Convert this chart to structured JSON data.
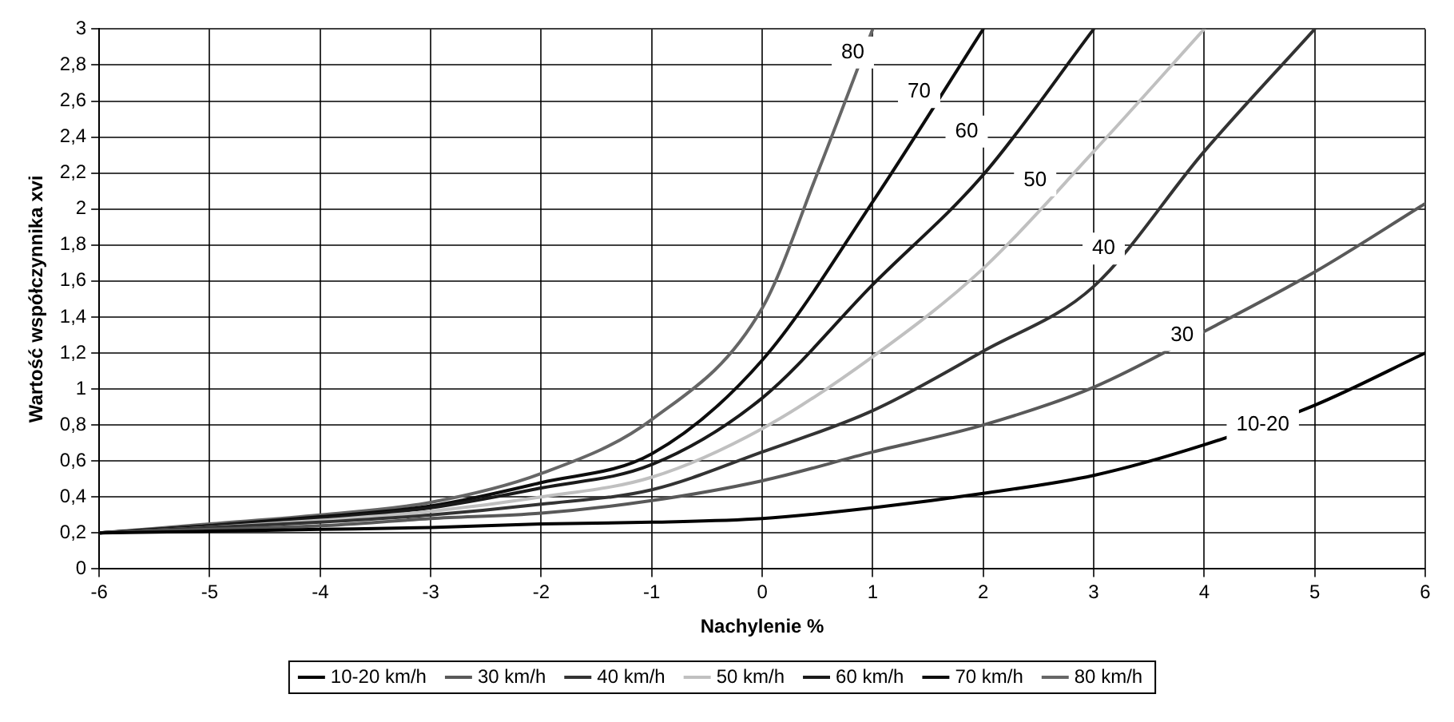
{
  "chart_data": {
    "type": "line",
    "xlabel": "Nachylenie %",
    "ylabel": "Wartość współczynnika xvi",
    "xlim": [
      -6,
      6
    ],
    "xticks": [
      -6,
      -5,
      -4,
      -3,
      -2,
      -1,
      0,
      1,
      2,
      3,
      4,
      5,
      6
    ],
    "ylim": [
      0,
      3
    ],
    "yticks": [
      0,
      {
        "value": 0.2,
        "label": "0,2"
      },
      {
        "value": 0.4,
        "label": "0,4"
      },
      {
        "value": 0.6,
        "label": "0,6"
      },
      {
        "value": 0.8,
        "label": "0,8"
      },
      1,
      {
        "value": 1.2,
        "label": "1,2"
      },
      {
        "value": 1.4,
        "label": "1,4"
      },
      {
        "value": 1.6,
        "label": "1,6"
      },
      {
        "value": 1.8,
        "label": "1,8"
      },
      2,
      {
        "value": 2.2,
        "label": "2,2"
      },
      {
        "value": 2.4,
        "label": "2,4"
      },
      {
        "value": 2.6,
        "label": "2,6"
      },
      {
        "value": 2.8,
        "label": "2,8"
      },
      3
    ],
    "grid": true,
    "legend": "bottom",
    "marker": "none",
    "line_style": "solid",
    "series": [
      {
        "name": "10-20 km/h",
        "color": "#000000",
        "x": [
          -6,
          -5,
          -4,
          -3,
          -2,
          -1,
          0,
          1,
          2,
          3,
          4,
          5,
          6
        ],
        "values": [
          0.2,
          0.21,
          0.22,
          0.23,
          0.25,
          0.26,
          0.28,
          0.34,
          0.42,
          0.52,
          0.69,
          0.91,
          1.2
        ]
      },
      {
        "name": "30 km/h",
        "color": "#595959",
        "x": [
          -6,
          -5,
          -4,
          -3,
          -2,
          -1,
          0,
          1,
          2,
          3,
          4,
          5,
          6
        ],
        "values": [
          0.2,
          0.22,
          0.24,
          0.28,
          0.31,
          0.38,
          0.49,
          0.65,
          0.8,
          1.01,
          1.32,
          1.65,
          2.03
        ]
      },
      {
        "name": "40 km/h",
        "color": "#333333",
        "x": [
          -6,
          -5,
          -4,
          -3,
          -2,
          -1,
          0,
          1,
          2,
          3,
          4,
          5
        ],
        "values": [
          0.2,
          0.23,
          0.26,
          0.3,
          0.36,
          0.44,
          0.65,
          0.88,
          1.21,
          1.57,
          2.32,
          3
        ]
      },
      {
        "name": "50 km/h",
        "color": "#c0c0c0",
        "x": [
          -6,
          -5,
          -4,
          -3,
          -2,
          -1,
          0,
          1,
          2,
          3,
          4
        ],
        "values": [
          0.2,
          0.23,
          0.27,
          0.32,
          0.4,
          0.51,
          0.78,
          1.18,
          1.67,
          2.32,
          3
        ]
      },
      {
        "name": "60 km/h",
        "color": "#1a1a1a",
        "x": [
          -6,
          -5,
          -4,
          -3,
          -2,
          -1,
          0,
          1,
          2,
          3
        ],
        "values": [
          0.2,
          0.24,
          0.28,
          0.34,
          0.45,
          0.58,
          0.95,
          1.58,
          2.19,
          3
        ]
      },
      {
        "name": "70 km/h",
        "color": "#0d0d0d",
        "x": [
          -6,
          -5,
          -4,
          -3,
          -2,
          -1,
          0,
          1,
          2
        ],
        "values": [
          0.2,
          0.24,
          0.29,
          0.35,
          0.48,
          0.64,
          1.16,
          2.04,
          3
        ]
      },
      {
        "name": "80 km/h",
        "color": "#666666",
        "x": [
          -6,
          -5,
          -4,
          -3,
          -2,
          -1,
          0,
          0.5,
          1
        ],
        "values": [
          0.2,
          0.25,
          0.3,
          0.37,
          0.53,
          0.83,
          1.45,
          2.2,
          3
        ]
      }
    ],
    "annotations": [
      {
        "text": "80",
        "x": 0.82,
        "y": 2.87
      },
      {
        "text": "70",
        "x": 1.42,
        "y": 2.65
      },
      {
        "text": "60",
        "x": 1.85,
        "y": 2.43
      },
      {
        "text": "50",
        "x": 2.47,
        "y": 2.16
      },
      {
        "text": "40",
        "x": 3.09,
        "y": 1.78
      },
      {
        "text": "30",
        "x": 3.8,
        "y": 1.3
      },
      {
        "text": "10-20",
        "x": 4.53,
        "y": 0.8
      }
    ]
  }
}
